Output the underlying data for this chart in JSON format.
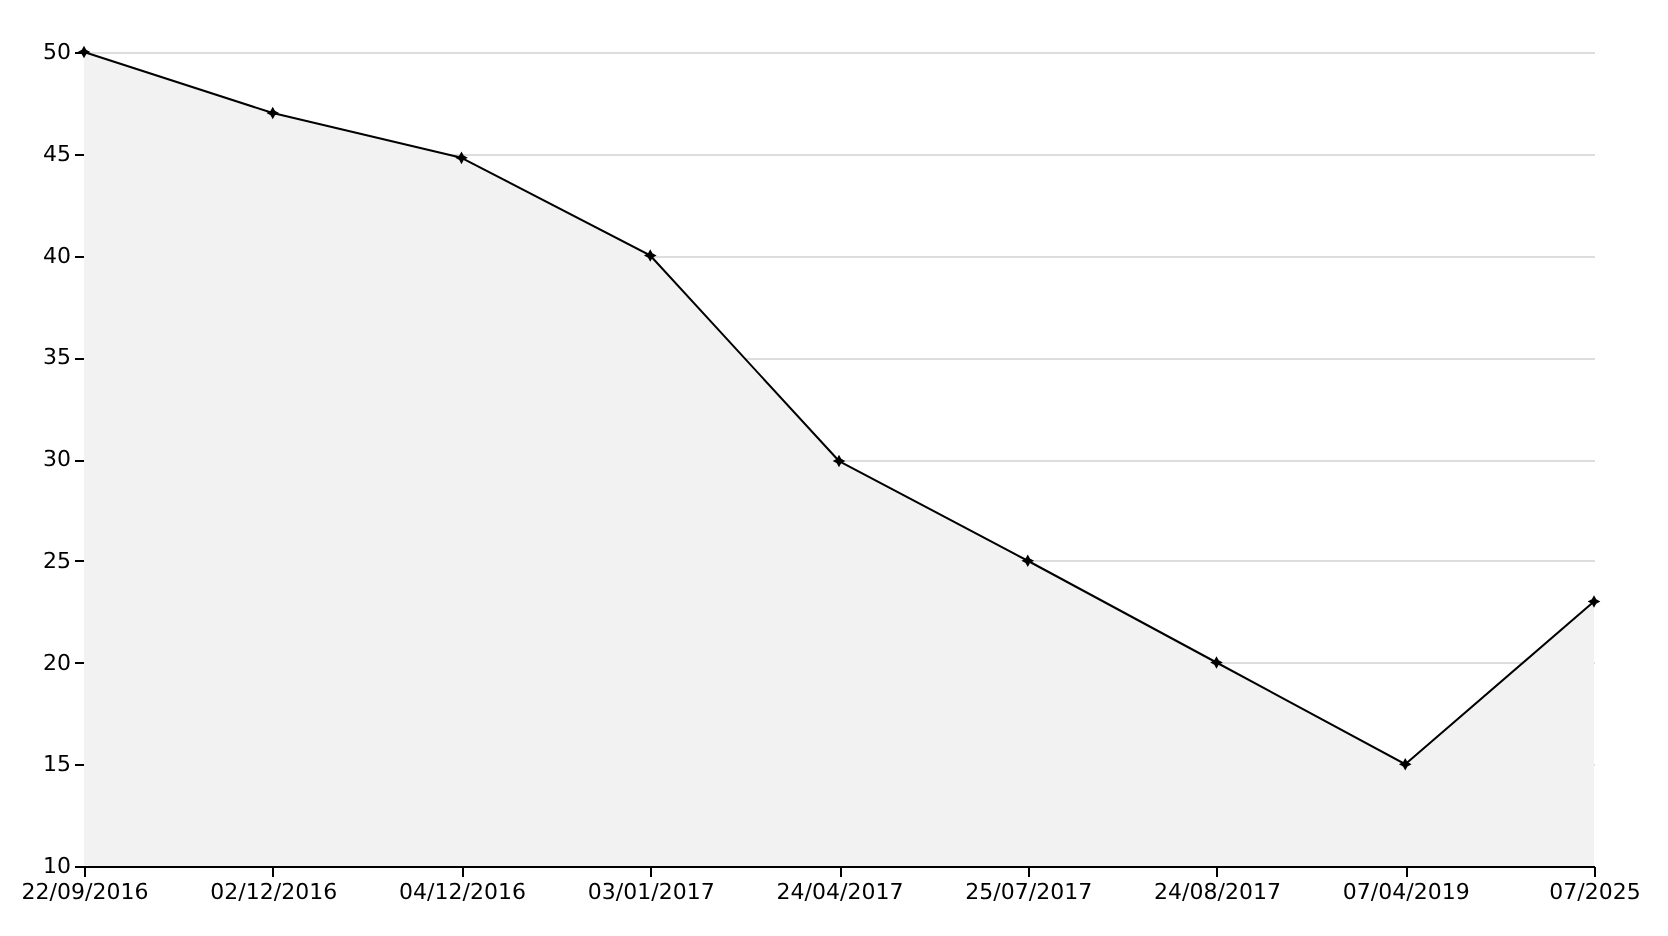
{
  "chart_data": {
    "type": "area",
    "categories": [
      "22/09/2016",
      "02/12/2016",
      "04/12/2016",
      "03/01/2017",
      "24/04/2017",
      "25/07/2017",
      "24/08/2017",
      "07/04/2019",
      "07/2025"
    ],
    "series": [
      {
        "color": "#f2f2f2",
        "values": [
          50,
          47,
          44.8,
          40,
          29.9,
          25,
          20,
          15,
          23
        ]
      }
    ],
    "ylim": [
      10,
      50
    ],
    "yticks": [
      10,
      15,
      20,
      25,
      30,
      35,
      40,
      45,
      50
    ],
    "grid": "y",
    "marker": "star"
  }
}
